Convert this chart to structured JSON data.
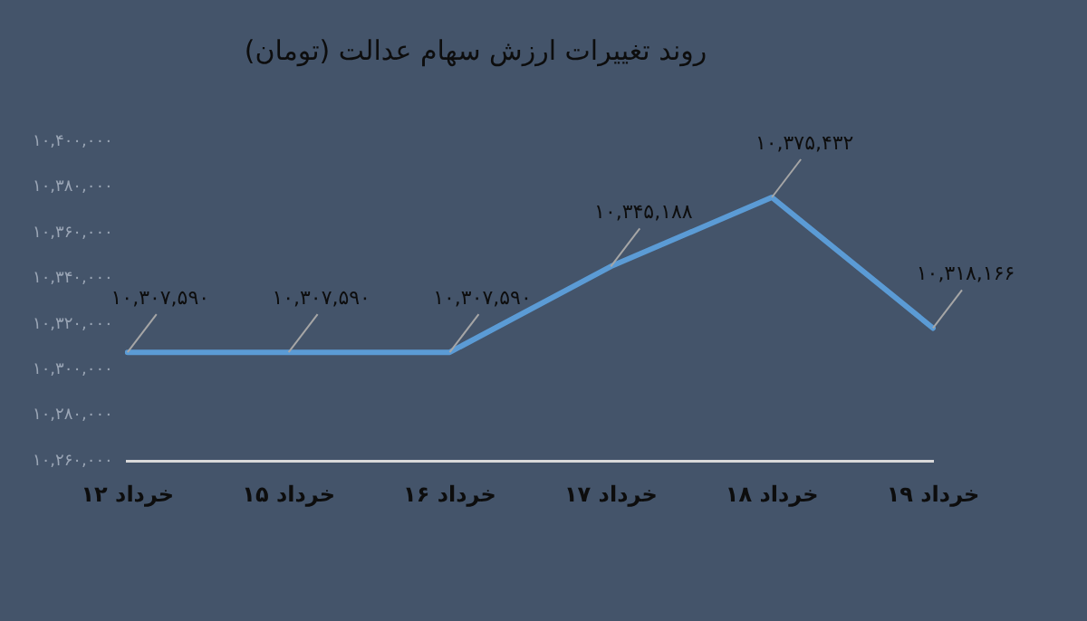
{
  "chart_data": {
    "type": "line",
    "title": "روند تغییرات ارزش سهام عدالت (تومان)",
    "categories": [
      "۱۲ خرداد",
      "۱۵ خرداد",
      "۱۶ خرداد",
      "۱۷ خرداد",
      "۱۸ خرداد",
      "۱۹ خرداد"
    ],
    "series": [
      {
        "color": "#5b9bd5",
        "values": [
          10307590,
          10307590,
          10307590,
          10345188,
          10375432,
          10318166
        ],
        "value_labels": [
          "۱۰,۳۰۷,۵۹۰",
          "۱۰,۳۰۷,۵۹۰",
          "۱۰,۳۰۷,۵۹۰",
          "۱۰,۳۴۵,۱۸۸",
          "۱۰,۳۷۵,۴۳۲",
          "۱۰,۳۱۸,۱۶۶"
        ]
      }
    ],
    "ylim": [
      10260000,
      10400000
    ],
    "yticks": [
      {
        "value": 10260000,
        "label": "۱۰,۲۶۰,۰۰۰"
      },
      {
        "value": 10280000,
        "label": "۱۰,۲۸۰,۰۰۰"
      },
      {
        "value": 10300000,
        "label": "۱۰,۳۰۰,۰۰۰"
      },
      {
        "value": 10320000,
        "label": "۱۰,۳۲۰,۰۰۰"
      },
      {
        "value": 10340000,
        "label": "۱۰,۳۴۰,۰۰۰"
      },
      {
        "value": 10360000,
        "label": "۱۰,۳۶۰,۰۰۰"
      },
      {
        "value": 10380000,
        "label": "۱۰,۳۸۰,۰۰۰"
      },
      {
        "value": 10400000,
        "label": "۱۰,۴۰۰,۰۰۰"
      }
    ],
    "grid": false,
    "legend": false,
    "marker": "none",
    "line_style": "solid"
  }
}
